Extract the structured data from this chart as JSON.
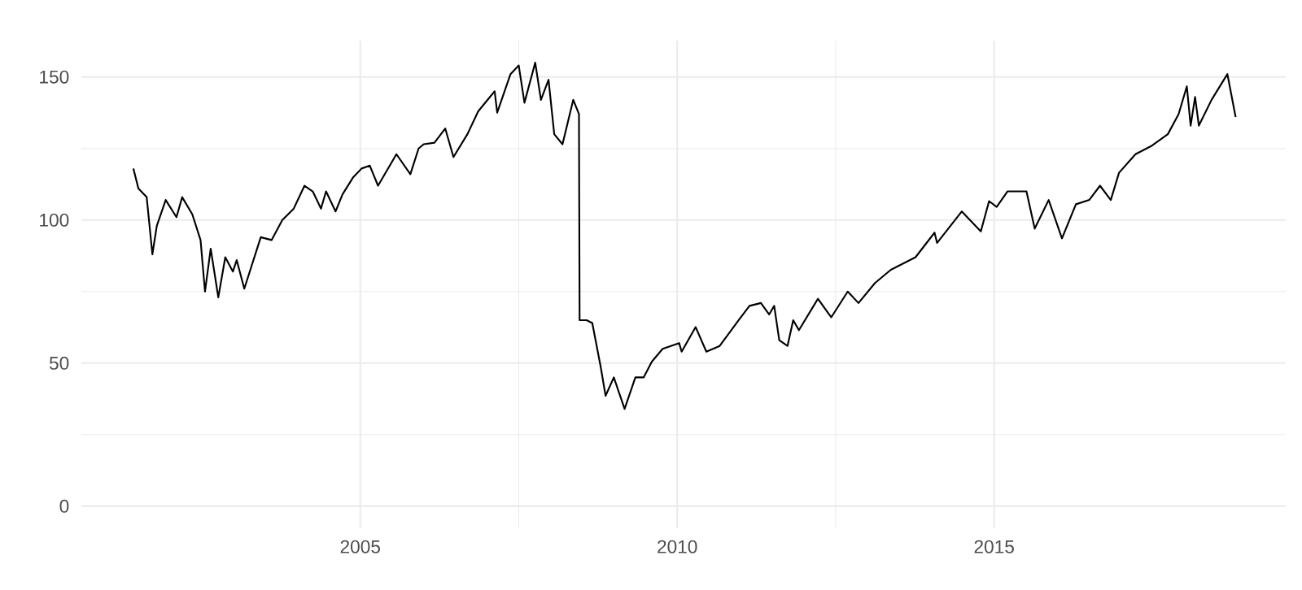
{
  "chart_data": {
    "type": "line",
    "color": "#000000",
    "line_style": "solid",
    "grid": true,
    "xlim": [
      2000.6,
      2019.6
    ],
    "ylim": [
      -7.7,
      162.7
    ],
    "xticks": [
      2005,
      2010,
      2015
    ],
    "yticks": [
      0,
      50,
      100,
      150
    ],
    "x": [
      2001.42,
      2001.5,
      2001.63,
      2001.72,
      2001.79,
      2001.93,
      2002.1,
      2002.19,
      2002.35,
      2002.48,
      2002.55,
      2002.64,
      2002.76,
      2002.87,
      2002.99,
      2003.05,
      2003.17,
      2003.43,
      2003.6,
      2003.77,
      2003.95,
      2004.12,
      2004.25,
      2004.38,
      2004.46,
      2004.61,
      2004.72,
      2004.89,
      2005.02,
      2005.15,
      2005.28,
      2005.57,
      2005.79,
      2005.92,
      2006.0,
      2006.17,
      2006.34,
      2006.47,
      2006.69,
      2006.86,
      2007.12,
      2007.16,
      2007.37,
      2007.5,
      2007.59,
      2007.76,
      2007.85,
      2007.97,
      2008.06,
      2008.19,
      2008.36,
      2008.45,
      2008.46,
      2008.57,
      2008.66,
      2008.79,
      2008.87,
      2009.0,
      2009.17,
      2009.34,
      2009.47,
      2009.6,
      2009.77,
      2010.03,
      2010.07,
      2010.29,
      2010.46,
      2010.67,
      2010.89,
      2010.97,
      2011.14,
      2011.32,
      2011.45,
      2011.53,
      2011.61,
      2011.74,
      2011.83,
      2011.92,
      2012.22,
      2012.43,
      2012.69,
      2012.86,
      2013.12,
      2013.37,
      2013.76,
      2014.06,
      2014.1,
      2014.49,
      2014.79,
      2014.92,
      2015.04,
      2015.21,
      2015.51,
      2015.64,
      2015.86,
      2016.07,
      2016.29,
      2016.5,
      2016.67,
      2016.84,
      2016.97,
      2017.23,
      2017.49,
      2017.74,
      2017.91,
      2018.04,
      2018.1,
      2018.17,
      2018.23,
      2018.43,
      2018.68,
      2018.81
    ],
    "values": [
      118,
      111,
      108,
      88,
      98,
      107,
      101,
      108,
      102,
      93,
      75,
      90,
      73,
      87,
      82,
      86,
      76,
      94,
      93,
      100,
      104,
      112,
      110,
      104,
      110,
      103,
      109,
      115,
      118,
      119,
      112,
      123,
      116,
      125,
      126.5,
      127,
      132,
      122,
      130,
      138,
      145,
      137.5,
      151,
      154,
      141,
      155,
      142,
      149,
      130,
      126.5,
      142,
      137,
      65,
      65,
      64,
      49,
      38.6,
      45,
      34,
      45,
      45,
      50.5,
      55,
      57,
      54,
      62.6,
      54,
      56,
      62.6,
      65,
      70,
      71,
      67,
      70,
      58,
      56,
      65,
      61.5,
      72.5,
      66,
      75,
      71,
      78,
      82.6,
      87,
      95.6,
      92,
      103,
      96,
      106.6,
      104.6,
      110,
      110,
      97,
      107,
      93.6,
      105.5,
      107,
      112,
      107,
      116.5,
      123,
      126,
      130,
      137,
      146.7,
      133,
      143,
      133,
      142,
      151,
      136
    ]
  }
}
